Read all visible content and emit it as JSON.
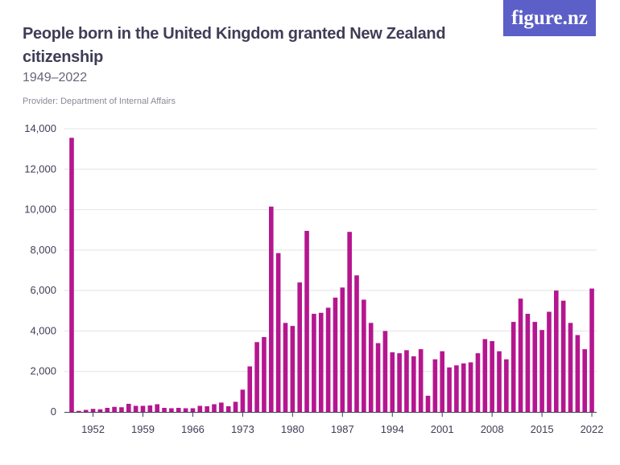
{
  "logo": {
    "text": "figure.nz"
  },
  "header": {
    "title": "People born in the United Kingdom granted New Zealand citizenship",
    "subtitle": "1949–2022",
    "provider": "Provider: Department of Internal Affairs"
  },
  "colors": {
    "bar": "#b5168f",
    "grid": "#e3e3e8",
    "axis": "#3f3d56",
    "logo_bg": "#5b5fc7"
  },
  "chart_data": {
    "type": "bar",
    "title": "People born in the United Kingdom granted New Zealand citizenship",
    "subtitle": "1949–2022",
    "xlabel": "",
    "ylabel": "",
    "ylim": [
      0,
      14000
    ],
    "yticks": [
      0,
      2000,
      4000,
      6000,
      8000,
      10000,
      12000,
      14000
    ],
    "ytick_labels": [
      "0",
      "2,000",
      "4,000",
      "6,000",
      "8,000",
      "10,000",
      "12,000",
      "14,000"
    ],
    "xticks": [
      1952,
      1959,
      1966,
      1973,
      1980,
      1987,
      1994,
      2001,
      2008,
      2015,
      2022
    ],
    "grid": true,
    "categories": [
      1949,
      1950,
      1951,
      1952,
      1953,
      1954,
      1955,
      1956,
      1957,
      1958,
      1959,
      1960,
      1961,
      1962,
      1963,
      1964,
      1965,
      1966,
      1967,
      1968,
      1969,
      1970,
      1971,
      1972,
      1973,
      1974,
      1975,
      1976,
      1977,
      1978,
      1979,
      1980,
      1981,
      1982,
      1983,
      1984,
      1985,
      1986,
      1987,
      1988,
      1989,
      1990,
      1991,
      1992,
      1993,
      1994,
      1995,
      1996,
      1997,
      1998,
      1999,
      2000,
      2001,
      2002,
      2003,
      2004,
      2005,
      2006,
      2007,
      2008,
      2009,
      2010,
      2011,
      2012,
      2013,
      2014,
      2015,
      2016,
      2017,
      2018,
      2019,
      2020,
      2021,
      2022
    ],
    "values": [
      13550,
      50,
      100,
      150,
      130,
      200,
      250,
      230,
      400,
      300,
      300,
      320,
      380,
      200,
      180,
      200,
      180,
      180,
      300,
      280,
      380,
      460,
      280,
      500,
      1100,
      2250,
      3450,
      3700,
      10150,
      7850,
      4400,
      4250,
      6400,
      8950,
      4850,
      4900,
      5150,
      5650,
      6150,
      8900,
      6750,
      5550,
      4400,
      3400,
      4000,
      2950,
      2900,
      3050,
      2750,
      3100,
      800,
      2600,
      3000,
      2200,
      2300,
      2400,
      2450,
      2900,
      3600,
      3500,
      3000,
      2600,
      4450,
      5600,
      4850,
      4450,
      4050,
      4950,
      6000,
      5500,
      4400,
      3800,
      3100,
      6100
    ]
  }
}
